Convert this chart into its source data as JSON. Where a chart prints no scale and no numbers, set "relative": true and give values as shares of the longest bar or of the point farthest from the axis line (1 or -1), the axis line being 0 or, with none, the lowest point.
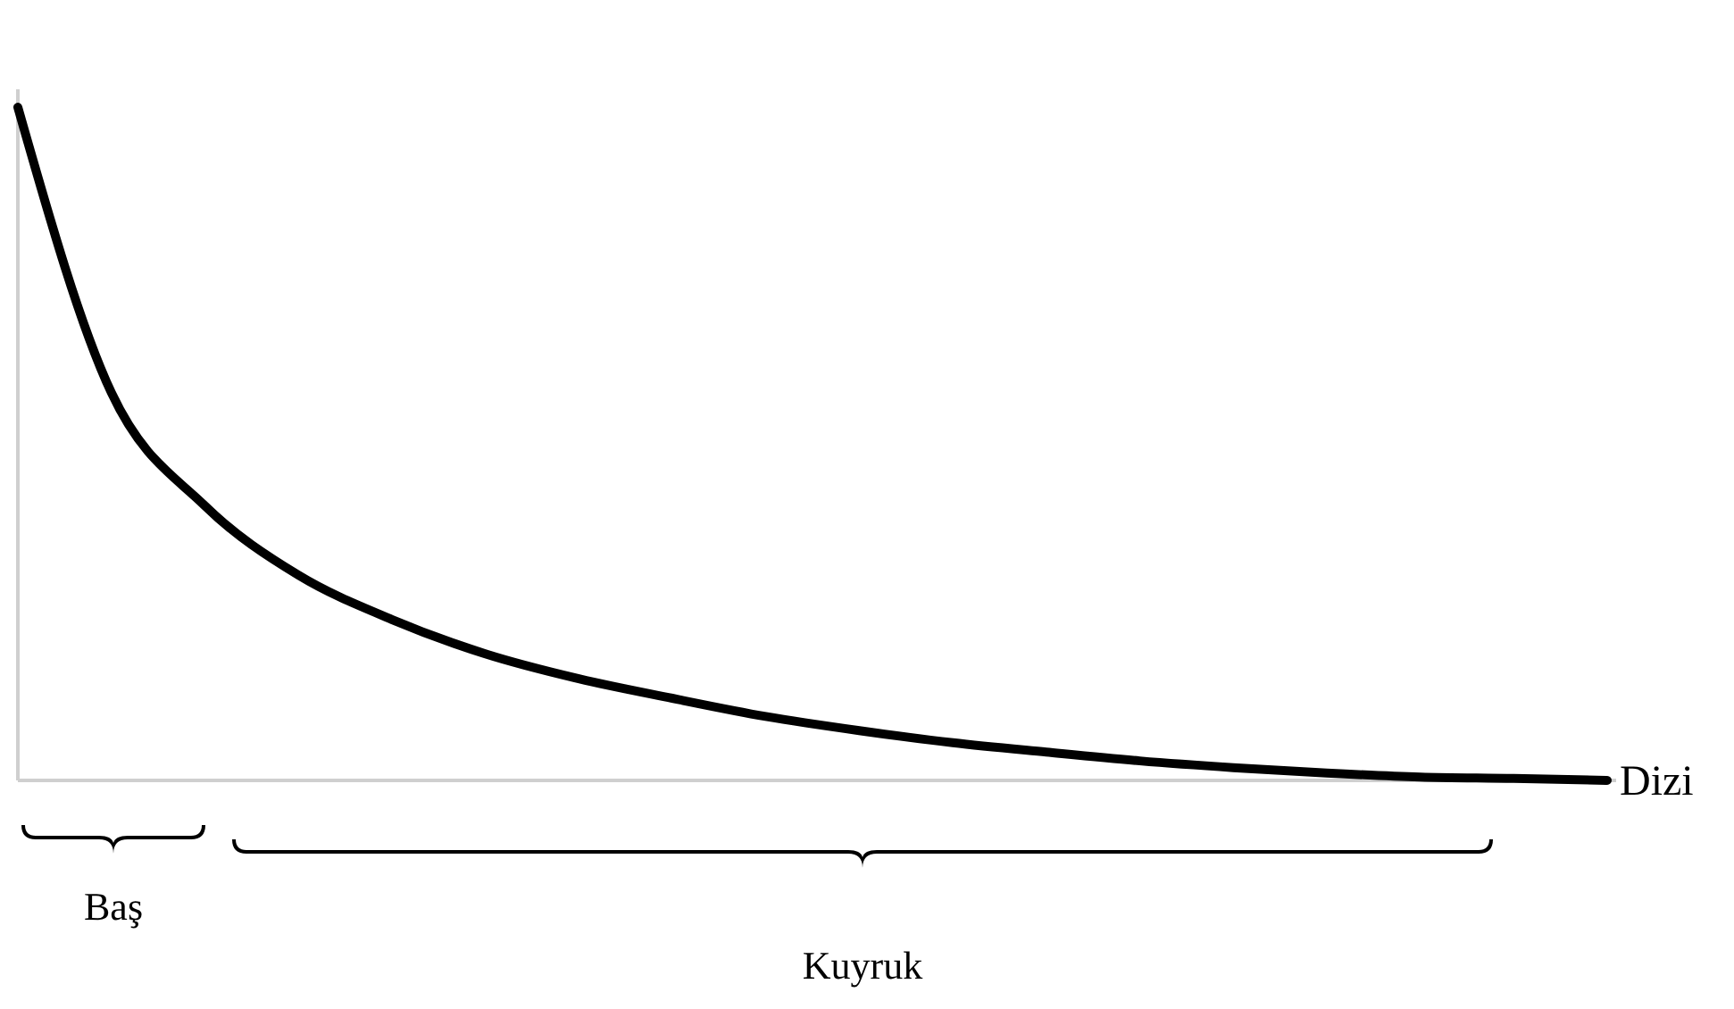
{
  "chart_data": {
    "type": "line",
    "relative": true,
    "xlabel": "Dizi",
    "categories": [
      null,
      null,
      null,
      null,
      null,
      null,
      null,
      null,
      null,
      null,
      null,
      null,
      null,
      null,
      null,
      null,
      null,
      null
    ],
    "series": [
      {
        "color": "#000000",
        "values": [
          1.0,
          0.576,
          0.408,
          0.305,
          0.239,
          0.188,
          0.151,
          0.122,
          0.095,
          0.074,
          0.056,
          0.042,
          0.029,
          0.019,
          0.011,
          0.005,
          0.003,
          0
        ]
      }
    ],
    "annotations": [
      "Baş",
      "Kuyruk"
    ]
  }
}
